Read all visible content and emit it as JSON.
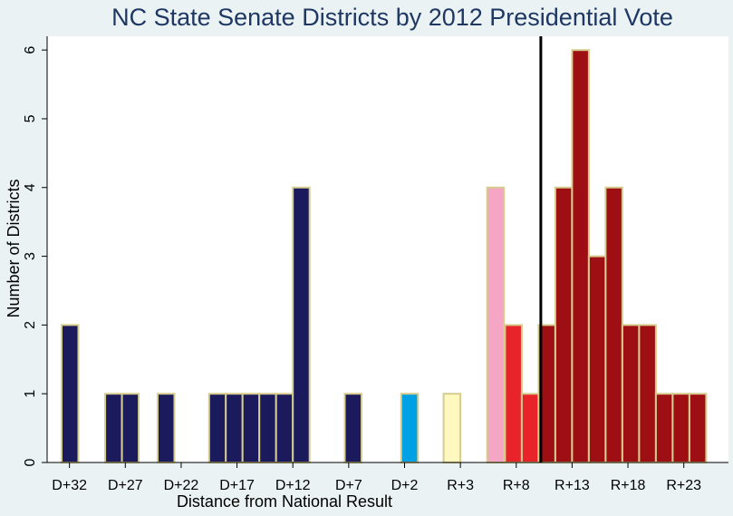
{
  "chart_data": {
    "type": "bar",
    "title": "NC State Senate Districts by 2012 Presidential Vote",
    "xlabel": "Distance from National Result",
    "ylabel": "Number of Districts",
    "ylim": [
      0,
      6.2
    ],
    "yticks": [
      0,
      1,
      2,
      3,
      4,
      5,
      6
    ],
    "xlim": [
      -34,
      27
    ],
    "xtick_positions": [
      -32,
      -27,
      -22,
      -17,
      -12,
      -7,
      -2,
      3,
      8,
      13,
      18,
      23
    ],
    "xtick_labels": [
      "D+32",
      "D+27",
      "D+22",
      "D+17",
      "D+12",
      "D+7",
      "D+2",
      "R+3",
      "R+8",
      "R+13",
      "R+18",
      "R+23"
    ],
    "bin_width": 1.5,
    "grid": false,
    "legend": "none",
    "reference_line_x": 10.2,
    "bars": [
      {
        "x": -31.95,
        "value": 2,
        "color": "#1a1a5c"
      },
      {
        "x": -28.05,
        "value": 1,
        "color": "#1a1a5c"
      },
      {
        "x": -26.55,
        "value": 1,
        "color": "#1a1a5c"
      },
      {
        "x": -23.35,
        "value": 1,
        "color": "#1a1a5c"
      },
      {
        "x": -18.75,
        "value": 1,
        "color": "#1a1a5c"
      },
      {
        "x": -17.25,
        "value": 1,
        "color": "#1a1a5c"
      },
      {
        "x": -15.75,
        "value": 1,
        "color": "#1a1a5c"
      },
      {
        "x": -14.25,
        "value": 1,
        "color": "#1a1a5c"
      },
      {
        "x": -12.75,
        "value": 1,
        "color": "#1a1a5c"
      },
      {
        "x": -11.25,
        "value": 4,
        "color": "#1a1a5c"
      },
      {
        "x": -6.6,
        "value": 1,
        "color": "#1a1a5c"
      },
      {
        "x": -1.55,
        "value": 1,
        "color": "#00a0e4"
      },
      {
        "x": 2.25,
        "value": 1,
        "color": "#fff8bf"
      },
      {
        "x": 6.15,
        "value": 4,
        "color": "#f4a6c4"
      },
      {
        "x": 7.75,
        "value": 2,
        "color": "#e8232a"
      },
      {
        "x": 9.25,
        "value": 1,
        "color": "#e8232a"
      },
      {
        "x": 10.75,
        "value": 2,
        "color": "#9e0f14"
      },
      {
        "x": 12.25,
        "value": 4,
        "color": "#9e0f14"
      },
      {
        "x": 13.75,
        "value": 6,
        "color": "#9e0f14"
      },
      {
        "x": 15.25,
        "value": 3,
        "color": "#9e0f14"
      },
      {
        "x": 16.75,
        "value": 4,
        "color": "#9e0f14"
      },
      {
        "x": 18.25,
        "value": 2,
        "color": "#9e0f14"
      },
      {
        "x": 19.75,
        "value": 2,
        "color": "#9e0f14"
      },
      {
        "x": 21.25,
        "value": 1,
        "color": "#9e0f14"
      },
      {
        "x": 22.75,
        "value": 1,
        "color": "#9e0f14"
      },
      {
        "x": 24.25,
        "value": 1,
        "color": "#9e0f14"
      }
    ],
    "colors": {
      "bar_outline": "#d6cc8f",
      "plot_background": "#ffffff",
      "page_background": "#eaf2f3",
      "title": "#1e3763",
      "reference_line": "#000000"
    }
  }
}
